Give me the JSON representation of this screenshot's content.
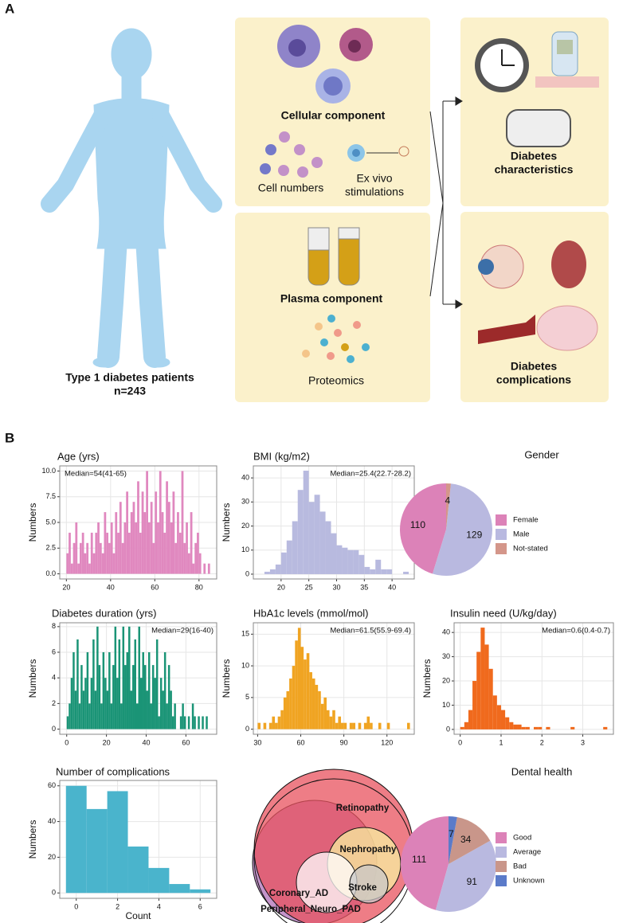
{
  "panel_a": {
    "label": "A",
    "patients": [
      "Type 1 diabetes patients",
      "n=243"
    ],
    "cellular": {
      "title": "Cellular component",
      "cell_numbers": "Cell numbers",
      "stimulations": [
        "Ex vivo",
        "stimulations"
      ]
    },
    "plasma": {
      "title": "Plasma component",
      "proteomics": "Proteomics"
    },
    "characteristics": [
      "Diabetes",
      "characteristics"
    ],
    "complications": [
      "Diabetes",
      "complications"
    ]
  },
  "panel_b": {
    "label": "B"
  },
  "chart_data": [
    {
      "type": "histogram",
      "title": "Age (yrs)",
      "y_label": "Numbers",
      "annotation": "Median=54(41-65)",
      "annotation_corner": "top-left",
      "color": "#e088bf",
      "grid": true,
      "bins": [
        20,
        21,
        22,
        23,
        24,
        25,
        26,
        27,
        28,
        29,
        30,
        31,
        32,
        33,
        34,
        35,
        36,
        37,
        38,
        39,
        40,
        41,
        42,
        43,
        44,
        45,
        46,
        47,
        48,
        49,
        50,
        51,
        52,
        53,
        54,
        55,
        56,
        57,
        58,
        59,
        60,
        61,
        62,
        63,
        64,
        65,
        66,
        67,
        68,
        69,
        70,
        71,
        72,
        73,
        74,
        75,
        76,
        77,
        78,
        79,
        80,
        81,
        82,
        83,
        84,
        85
      ],
      "values": [
        2,
        4,
        1,
        3,
        5,
        1,
        3,
        4,
        2,
        3,
        1,
        4,
        2,
        4,
        5,
        3,
        2,
        6,
        4,
        3,
        5,
        2,
        6,
        4,
        7,
        3,
        5,
        8,
        4,
        6,
        7,
        5,
        9,
        4,
        8,
        6,
        10,
        5,
        7,
        3,
        8,
        5,
        10,
        6,
        4,
        9,
        7,
        5,
        8,
        3,
        6,
        4,
        10,
        3,
        5,
        2,
        6,
        1,
        3,
        4,
        2,
        0,
        1,
        0,
        1
      ],
      "xlim": [
        17,
        88
      ],
      "xticks": [
        20,
        40,
        60,
        80
      ],
      "ylim": [
        -0.5,
        10.5
      ],
      "yticks": [
        {
          "value": 0,
          "label": "0.0"
        },
        {
          "value": 2.5,
          "label": "2.5"
        },
        {
          "value": 5,
          "label": "5.0"
        },
        {
          "value": 7.5,
          "label": "7.5"
        },
        {
          "value": 10,
          "label": "10.0"
        }
      ]
    },
    {
      "type": "histogram",
      "title": "BMI (kg/m2)",
      "y_label": "Numbers",
      "annotation": "Median=25.4(22.7-28.2)",
      "annotation_corner": "top-right",
      "color": "#b8badf",
      "grid": true,
      "bins": [
        16,
        17,
        18,
        19,
        20,
        21,
        22,
        23,
        24,
        25,
        26,
        27,
        28,
        29,
        30,
        31,
        32,
        33,
        34,
        35,
        36,
        37,
        38,
        39,
        40,
        41,
        42,
        43
      ],
      "values": [
        0,
        1,
        2,
        4,
        9,
        14,
        22,
        35,
        43,
        30,
        33,
        26,
        22,
        17,
        12,
        11,
        10,
        10,
        8,
        3,
        2,
        6,
        2,
        2,
        0,
        0,
        1
      ],
      "xlim": [
        15,
        44
      ],
      "xticks": [
        20,
        25,
        30,
        35,
        40
      ],
      "ylim": [
        -2,
        45
      ],
      "yticks": [
        0,
        10,
        20,
        30,
        40
      ]
    },
    {
      "type": "pie",
      "title": "Gender",
      "categories": [
        "Female",
        "Male",
        "Not-stated"
      ],
      "values": [
        110,
        129,
        4
      ],
      "colors": [
        "#dc82b8",
        "#b9b9e0",
        "#d4968a"
      ]
    },
    {
      "type": "histogram",
      "title": "Diabetes duration (yrs)",
      "y_label": "Numbers",
      "annotation": "Median=29(16-40)",
      "annotation_corner": "top-right",
      "color": "#1a9476",
      "grid": true,
      "bins": [
        0,
        1,
        2,
        3,
        4,
        5,
        6,
        7,
        8,
        9,
        10,
        11,
        12,
        13,
        14,
        15,
        16,
        17,
        18,
        19,
        20,
        21,
        22,
        23,
        24,
        25,
        26,
        27,
        28,
        29,
        30,
        31,
        32,
        33,
        34,
        35,
        36,
        37,
        38,
        39,
        40,
        41,
        42,
        43,
        44,
        45,
        46,
        47,
        48,
        49,
        50,
        51,
        52,
        53,
        54,
        55,
        56,
        57,
        58,
        59,
        60,
        61,
        62,
        63,
        64,
        65,
        66,
        67,
        68,
        69,
        70,
        71,
        72
      ],
      "values": [
        1,
        2,
        4,
        6,
        3,
        7,
        2,
        5,
        3,
        4,
        6,
        2,
        4,
        7,
        3,
        8,
        5,
        2,
        6,
        4,
        3,
        6,
        2,
        5,
        8,
        4,
        7,
        2,
        8,
        5,
        6,
        8,
        3,
        5,
        7,
        2,
        8,
        4,
        6,
        5,
        3,
        6,
        2,
        5,
        4,
        7,
        1,
        4,
        3,
        6,
        2,
        5,
        3,
        1,
        2,
        0,
        0,
        1,
        2,
        1,
        0,
        1,
        0,
        2,
        1,
        0,
        1,
        0,
        1,
        0,
        1,
        0
      ],
      "xlim": [
        -3.5,
        75.5
      ],
      "xticks": [
        0,
        20,
        40,
        60
      ],
      "ylim": [
        -0.4,
        8.3
      ],
      "yticks": [
        0,
        2,
        4,
        6,
        8
      ]
    },
    {
      "type": "histogram",
      "title": "HbA1c levels (mmol/mol)",
      "y_label": "Numbers",
      "annotation": "Median=61.5(55.9-69.4)",
      "annotation_corner": "top-right",
      "color": "#f0a422",
      "grid": true,
      "bins": [
        30,
        32,
        34,
        36,
        38,
        40,
        42,
        44,
        46,
        48,
        50,
        52,
        54,
        56,
        58,
        60,
        62,
        64,
        66,
        68,
        70,
        72,
        74,
        76,
        78,
        80,
        82,
        84,
        86,
        88,
        90,
        92,
        94,
        96,
        98,
        100,
        102,
        104,
        106,
        108,
        110,
        112,
        114,
        116,
        118,
        120,
        122,
        124,
        126,
        128,
        130,
        132,
        134,
        136
      ],
      "values": [
        1,
        0,
        1,
        0,
        1,
        2,
        1,
        2,
        3,
        5,
        6,
        8,
        10,
        14,
        16,
        13,
        11,
        12,
        9,
        8,
        7,
        6,
        4,
        5,
        3,
        2,
        3,
        1,
        2,
        1,
        1,
        0,
        1,
        1,
        0,
        1,
        0,
        1,
        2,
        1,
        0,
        0,
        1,
        0,
        0,
        1,
        0,
        0,
        0,
        0,
        0,
        0,
        1
      ],
      "xlim": [
        27,
        139
      ],
      "xticks": [
        30,
        60,
        90,
        120
      ],
      "ylim": [
        -0.8,
        16.8
      ],
      "yticks": [
        0,
        5,
        10,
        15
      ]
    },
    {
      "type": "histogram",
      "title": "Insulin need (U/kg/day)",
      "y_label": "Numbers",
      "annotation": "Median=0.6(0.4-0.7)",
      "annotation_corner": "top-right",
      "color": "#f06a1d",
      "grid": true,
      "bins": [
        0,
        0.1,
        0.2,
        0.3,
        0.4,
        0.5,
        0.6,
        0.7,
        0.8,
        0.9,
        1,
        1.1,
        1.2,
        1.3,
        1.4,
        1.5,
        1.6,
        1.7,
        1.8,
        1.9,
        2,
        2.1,
        2.2,
        2.3,
        2.4,
        2.5,
        2.6,
        2.7,
        2.8,
        2.9,
        3,
        3.1,
        3.2,
        3.3,
        3.4,
        3.5,
        3.6
      ],
      "values": [
        1,
        3,
        8,
        20,
        32,
        42,
        35,
        25,
        14,
        10,
        8,
        5,
        3,
        2,
        2,
        1,
        1,
        0,
        1,
        1,
        0,
        1,
        0,
        0,
        0,
        0,
        0,
        1,
        0,
        0,
        0,
        0,
        0,
        0,
        0,
        1
      ],
      "xlim": [
        -0.15,
        3.75
      ],
      "xticks": [
        0,
        1,
        2,
        3
      ],
      "ylim": [
        -2,
        44
      ],
      "yticks": [
        0,
        10,
        20,
        30,
        40
      ]
    },
    {
      "type": "histogram",
      "title": "Number of complications",
      "y_label": "Numbers",
      "x_label": "Count",
      "color": "#4ab4cc",
      "grid": true,
      "bins": [
        -0.5,
        0.5,
        1.5,
        2.5,
        3.5,
        4.5,
        5.5,
        6.5
      ],
      "values": [
        60,
        47,
        57,
        26,
        14,
        5,
        2
      ],
      "xlim": [
        -0.8,
        6.8
      ],
      "xticks": [
        0,
        2,
        4,
        6
      ],
      "ylim": [
        -3,
        63
      ],
      "yticks": [
        0,
        20,
        40,
        60
      ]
    },
    {
      "type": "venn",
      "sets": [
        {
          "name": "Peripheral_Neuro_PAD",
          "color": "#b070b8"
        },
        {
          "name": "Retinopathy",
          "color": "#e8525e"
        },
        {
          "name": "Nephropathy",
          "color": "#f8f0a0"
        },
        {
          "name": "Coronary_AD",
          "color": "#ffffff"
        },
        {
          "name": "Stroke",
          "color": "#c8c8c8"
        }
      ]
    },
    {
      "type": "pie",
      "title": "Dental health",
      "categories": [
        "Good",
        "Average",
        "Bad",
        "Unknown"
      ],
      "values": [
        111,
        91,
        34,
        7
      ],
      "colors": [
        "#dc82b8",
        "#b9b9e0",
        "#c9968a",
        "#5b7bc9"
      ]
    }
  ]
}
